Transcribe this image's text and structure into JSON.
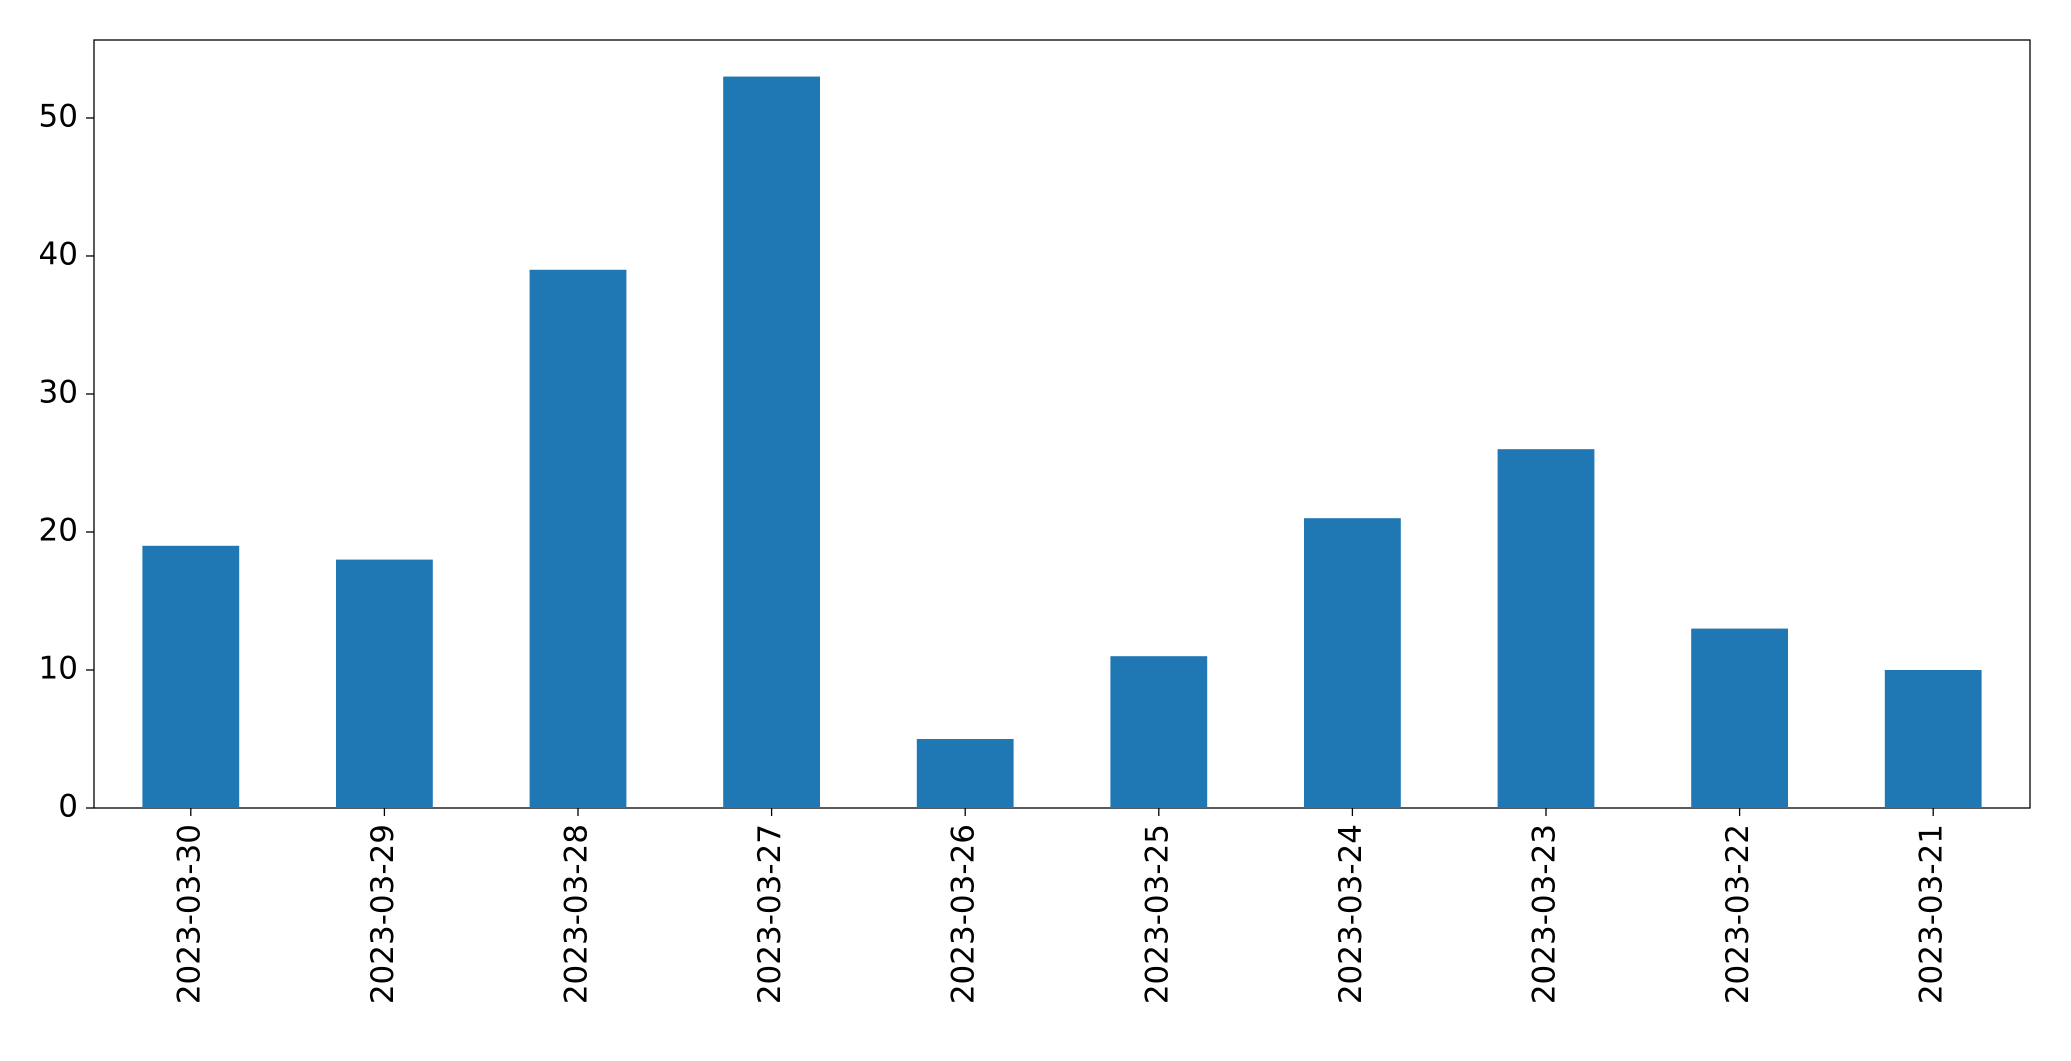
{
  "chart_data": {
    "type": "bar",
    "categories": [
      "2023-03-30",
      "2023-03-29",
      "2023-03-28",
      "2023-03-27",
      "2023-03-26",
      "2023-03-25",
      "2023-03-24",
      "2023-03-23",
      "2023-03-22",
      "2023-03-21"
    ],
    "values": [
      19,
      18,
      39,
      53,
      5,
      11,
      21,
      26,
      13,
      10
    ],
    "color": "#1f77b4",
    "ylim": [
      0,
      55.65
    ],
    "yticks": [
      0,
      10,
      20,
      30,
      40,
      50
    ],
    "grid": false
  }
}
